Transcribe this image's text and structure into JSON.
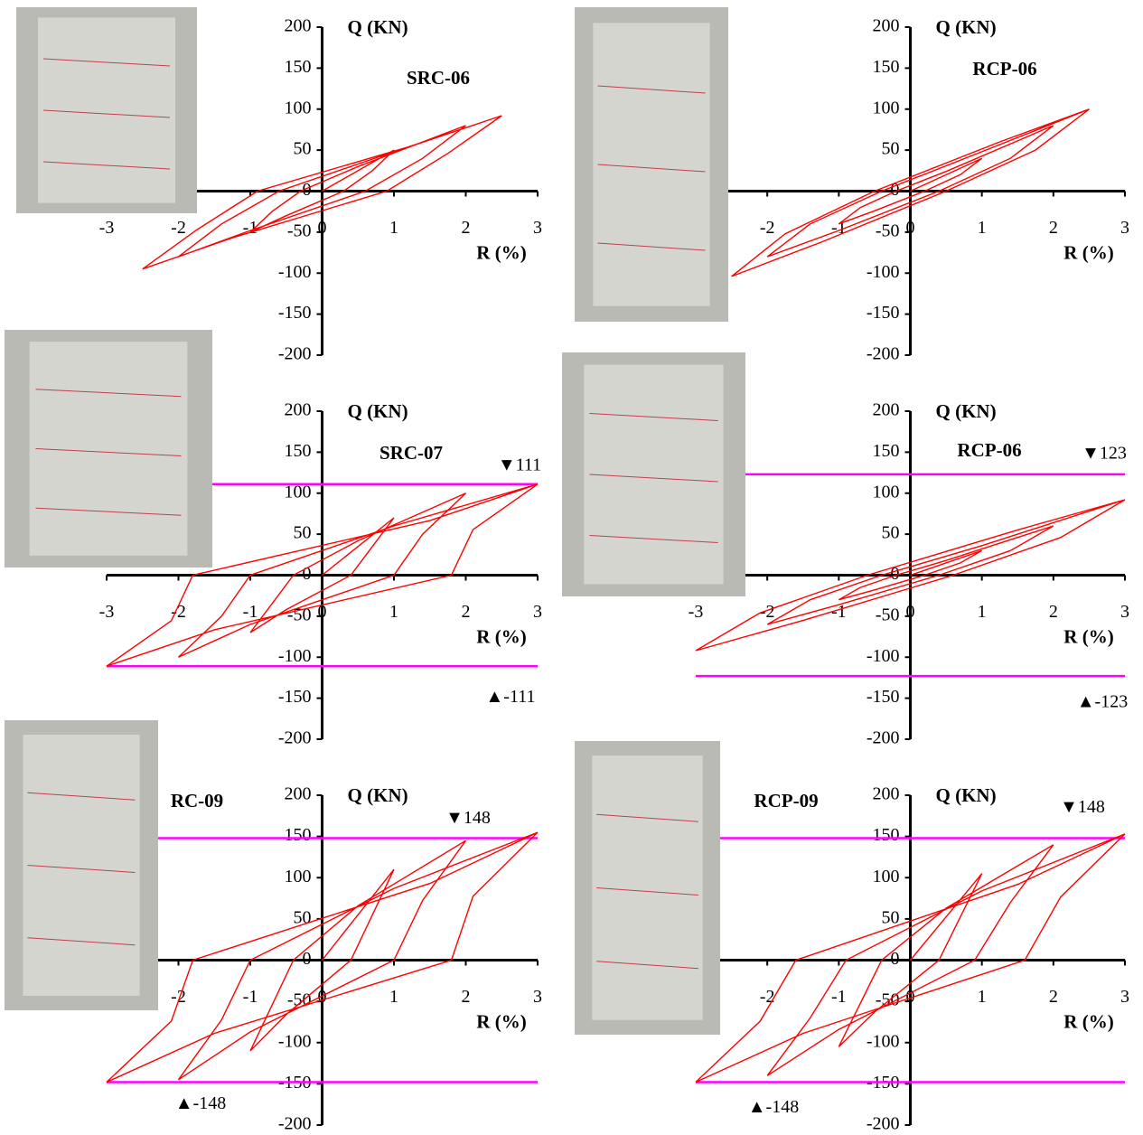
{
  "chart_data": [
    {
      "type": "line",
      "title": "SRC-06",
      "y_label": "Q (KN)",
      "x_label": "R (%)",
      "color": "#ff0000",
      "xlim": [
        -3,
        3
      ],
      "ylim": [
        -200,
        200
      ],
      "xticks": [
        -3,
        -2,
        -1,
        0,
        1,
        2,
        3
      ],
      "yticks": [
        -200,
        -150,
        -100,
        -50,
        0,
        50,
        100,
        150,
        200
      ],
      "x": [
        0,
        1,
        0.7,
        0.3,
        -0.5,
        -1,
        -0.7,
        -0.3,
        0.5,
        2,
        1.4,
        0.6,
        -1,
        -2,
        -1.4,
        -0.6,
        1,
        2.5,
        1.75,
        0.9,
        -1.25,
        -2.5,
        -1.75,
        -0.9,
        1.25,
        2.5
      ],
      "values": [
        0,
        50,
        25,
        0,
        -30,
        -50,
        -25,
        0,
        30,
        80,
        40,
        0,
        -48,
        -80,
        -40,
        0,
        48,
        92,
        46,
        0,
        -57,
        -95,
        -47.5,
        0,
        55.2,
        92
      ]
    },
    {
      "type": "line",
      "title": "RCP-06",
      "y_label": "Q (KN)",
      "x_label": "R (%)",
      "color": "#ff0000",
      "xlim": [
        -3,
        3
      ],
      "ylim": [
        -200,
        200
      ],
      "xticks": [
        -2,
        -1,
        0,
        1,
        2,
        3
      ],
      "yticks": [
        -200,
        -150,
        -100,
        -50,
        0,
        50,
        100,
        150,
        200
      ],
      "x": [
        0,
        1,
        0.7,
        0.2,
        -0.5,
        -1,
        -0.7,
        -0.2,
        0.5,
        2,
        1.4,
        0.4,
        -1,
        -2,
        -1.4,
        -0.4,
        1,
        2.5,
        1.75,
        0.5,
        -1.25,
        -2.5,
        -1.75,
        -0.5,
        1.25,
        2.5
      ],
      "values": [
        0,
        40,
        20,
        0,
        -24,
        -40,
        -20,
        0,
        24,
        80,
        40,
        0,
        -48,
        -80,
        -40,
        0,
        48,
        100,
        50,
        0,
        -62.4,
        -104,
        -52,
        0,
        60,
        100
      ]
    },
    {
      "type": "line",
      "title": "SRC-07",
      "y_label": "Q (KN)",
      "x_label": "R (%)",
      "color": "#ff0000",
      "xlim": [
        -3,
        3
      ],
      "ylim": [
        -200,
        200
      ],
      "xticks": [
        -3,
        -2,
        -1,
        0,
        1,
        2,
        3
      ],
      "yticks": [
        -200,
        -150,
        -100,
        -50,
        0,
        50,
        100,
        150,
        200
      ],
      "x": [
        0,
        1,
        0.7,
        0.4,
        -0.5,
        -1,
        -0.7,
        -0.4,
        0.5,
        2,
        1.4,
        1,
        -1,
        -2,
        -1.4,
        -1,
        1,
        3,
        2.1,
        1.8,
        -1.5,
        -3,
        -2.1,
        -1.8,
        1.5,
        3
      ],
      "values": [
        0,
        70,
        35,
        0,
        -42,
        -70,
        -35,
        0,
        42,
        100,
        50,
        0,
        -60,
        -100,
        -50,
        0,
        60,
        111,
        55.5,
        0,
        -66.6,
        -111,
        -55.5,
        0,
        66.6,
        111
      ],
      "reference_lines": [
        {
          "value": 111,
          "label": "▼111"
        },
        {
          "value": -111,
          "label": "▲-111"
        }
      ],
      "reference_color": "#ff00ff"
    },
    {
      "type": "line",
      "title": "RCP-06",
      "y_label": "Q (KN)",
      "x_label": "R (%)",
      "color": "#ff0000",
      "xlim": [
        -3,
        3
      ],
      "ylim": [
        -200,
        200
      ],
      "xticks": [
        -3,
        -2,
        -1,
        0,
        1,
        2,
        3
      ],
      "yticks": [
        -200,
        -150,
        -100,
        -50,
        0,
        50,
        100,
        150,
        200
      ],
      "x": [
        0,
        1,
        0.7,
        0.2,
        -0.5,
        -1,
        -0.7,
        -0.2,
        0.5,
        2,
        1.4,
        0.4,
        -1,
        -2,
        -1.4,
        -0.4,
        1,
        3,
        2.1,
        0.6,
        -1.5,
        -3,
        -2.1,
        -0.6,
        1.5,
        3
      ],
      "values": [
        0,
        30,
        15,
        0,
        -18,
        -30,
        -15,
        0,
        18,
        60,
        30,
        0,
        -36,
        -60,
        -30,
        0,
        36,
        92,
        46,
        0,
        -55.2,
        -92,
        -46,
        0,
        55.2,
        92
      ],
      "reference_lines": [
        {
          "value": 123,
          "label": "▼123"
        },
        {
          "value": -123,
          "label": "▲-123"
        }
      ],
      "reference_color": "#ff00ff"
    },
    {
      "type": "line",
      "title": "RC-09",
      "y_label": "Q (KN)",
      "x_label": "R (%)",
      "color": "#ff0000",
      "xlim": [
        -3,
        3
      ],
      "ylim": [
        -200,
        200
      ],
      "xticks": [
        -2,
        -1,
        0,
        1,
        2,
        3
      ],
      "yticks": [
        -200,
        -150,
        -100,
        -50,
        0,
        50,
        100,
        150,
        200
      ],
      "x": [
        0,
        1,
        0.7,
        0.4,
        -0.5,
        -1,
        -0.7,
        -0.4,
        0.5,
        2,
        1.4,
        1,
        -1,
        -2,
        -1.4,
        -1,
        1,
        3,
        2.1,
        1.8,
        -1.5,
        -3,
        -2.1,
        -1.8,
        1.5,
        3
      ],
      "values": [
        0,
        110,
        55,
        0,
        -66,
        -110,
        -55,
        0,
        66,
        145,
        72.5,
        0,
        -87,
        -145,
        -72.5,
        0,
        87,
        155,
        77.5,
        0,
        -88.8,
        -148,
        -74,
        0,
        93,
        155
      ],
      "reference_lines": [
        {
          "value": 148,
          "label": "▼148"
        },
        {
          "value": -148,
          "label": "▲-148"
        }
      ],
      "reference_color": "#ff00ff"
    },
    {
      "type": "line",
      "title": "RCP-09",
      "y_label": "Q (KN)",
      "x_label": "R (%)",
      "color": "#ff0000",
      "xlim": [
        -3,
        3
      ],
      "ylim": [
        -200,
        200
      ],
      "xticks": [
        -2,
        -1,
        0,
        1,
        2,
        3
      ],
      "yticks": [
        -200,
        -150,
        -100,
        -50,
        0,
        50,
        100,
        150,
        200
      ],
      "x": [
        0,
        1,
        0.7,
        0.4,
        -0.5,
        -1,
        -0.7,
        -0.4,
        0.5,
        2,
        1.4,
        0.9,
        -1,
        -2,
        -1.4,
        -0.9,
        1,
        3,
        2.1,
        1.6,
        -1.5,
        -3,
        -2.1,
        -1.6,
        1.5,
        3
      ],
      "values": [
        0,
        105,
        52.5,
        0,
        -63,
        -105,
        -52.5,
        0,
        63,
        140,
        70,
        0,
        -84,
        -140,
        -70,
        0,
        84,
        153,
        76.5,
        0,
        -88.8,
        -148,
        -74,
        0,
        91.8,
        153
      ],
      "reference_lines": [
        {
          "value": 148,
          "label": "▼148"
        },
        {
          "value": -148,
          "label": "▲-148"
        }
      ],
      "reference_color": "#ff00ff"
    }
  ]
}
